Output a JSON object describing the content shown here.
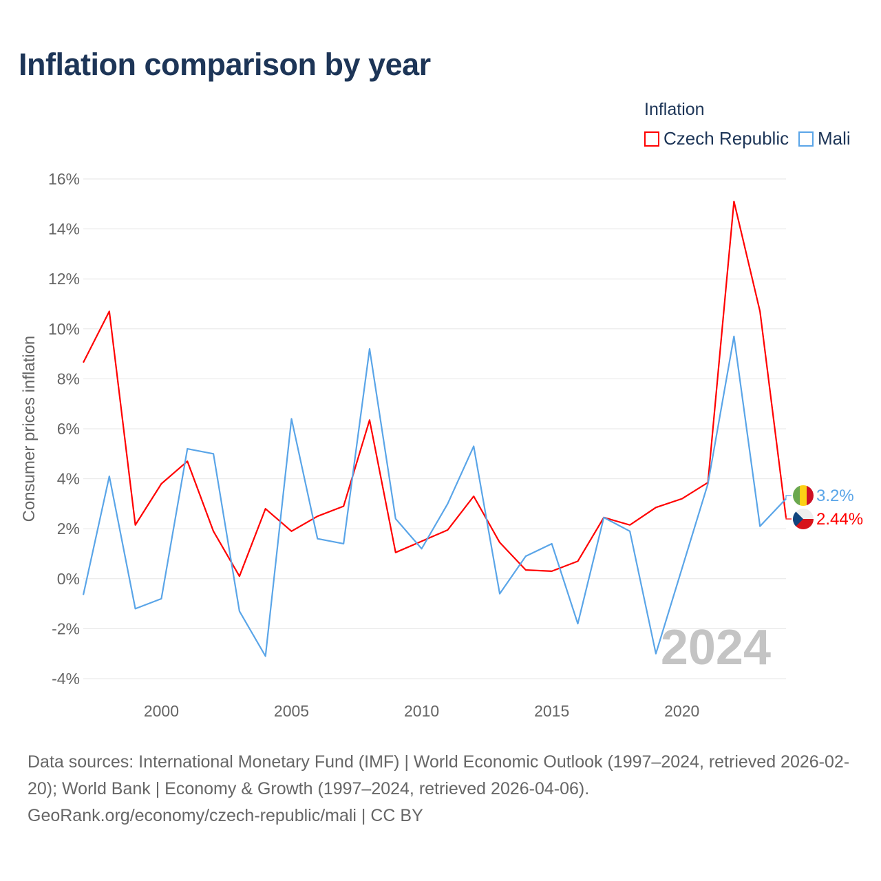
{
  "title": "Inflation comparison by year",
  "legend": {
    "title": "Inflation",
    "items": [
      {
        "name": "Czech Republic",
        "color": "#ff0000"
      },
      {
        "name": "Mali",
        "color": "#5aa5e8"
      }
    ]
  },
  "source": {
    "line1": "Data sources: International Monetary Fund (IMF) | World Economic Outlook (1997–2024, retrieved 2026-02-20); World Bank | Economy & Growth (1997–2024, retrieved 2026-04-06).",
    "line2": "GeoRank.org/economy/czech-republic/mali | CC BY"
  },
  "watermark_year": "2024",
  "chart_data": {
    "type": "line",
    "title": "Inflation comparison by year",
    "ylabel": "Consumer prices inflation",
    "xlabel": "",
    "ylim": [
      -4,
      16
    ],
    "xlim": [
      1997,
      2024
    ],
    "yticks": [
      -4,
      -2,
      0,
      2,
      4,
      6,
      8,
      10,
      12,
      14,
      16
    ],
    "ytick_labels": [
      "-4%",
      "-2%",
      "0%",
      "2%",
      "4%",
      "6%",
      "8%",
      "10%",
      "12%",
      "14%",
      "16%"
    ],
    "xticks": [
      2000,
      2005,
      2010,
      2015,
      2020
    ],
    "xtick_labels": [
      "2000",
      "2005",
      "2010",
      "2015",
      "2020"
    ],
    "grid": true,
    "legend_position": "top-right",
    "x": [
      1997,
      1998,
      1999,
      2000,
      2001,
      2002,
      2003,
      2004,
      2005,
      2006,
      2007,
      2008,
      2009,
      2010,
      2011,
      2012,
      2013,
      2014,
      2015,
      2016,
      2017,
      2018,
      2019,
      2020,
      2021,
      2022,
      2023,
      2024
    ],
    "series": [
      {
        "name": "Czech Republic",
        "color": "#ff0000",
        "end_label": "2.44%",
        "flag": "czech-flag",
        "values": [
          8.65,
          10.7,
          2.15,
          3.8,
          4.7,
          1.9,
          0.1,
          2.8,
          1.9,
          2.5,
          2.9,
          6.35,
          1.05,
          1.5,
          1.95,
          3.3,
          1.45,
          0.35,
          0.3,
          0.7,
          2.45,
          2.15,
          2.85,
          3.2,
          3.85,
          15.1,
          10.7,
          2.44
        ]
      },
      {
        "name": "Mali",
        "color": "#5aa5e8",
        "end_label": "3.2%",
        "flag": "mali-flag",
        "values": [
          -0.65,
          4.1,
          -1.2,
          -0.8,
          5.2,
          5.0,
          -1.3,
          -3.1,
          6.4,
          1.6,
          1.4,
          9.2,
          2.4,
          1.2,
          3.0,
          5.3,
          -0.6,
          0.9,
          1.4,
          -1.8,
          2.45,
          1.9,
          -3.0,
          0.4,
          3.8,
          9.7,
          2.1,
          3.2
        ]
      }
    ]
  }
}
